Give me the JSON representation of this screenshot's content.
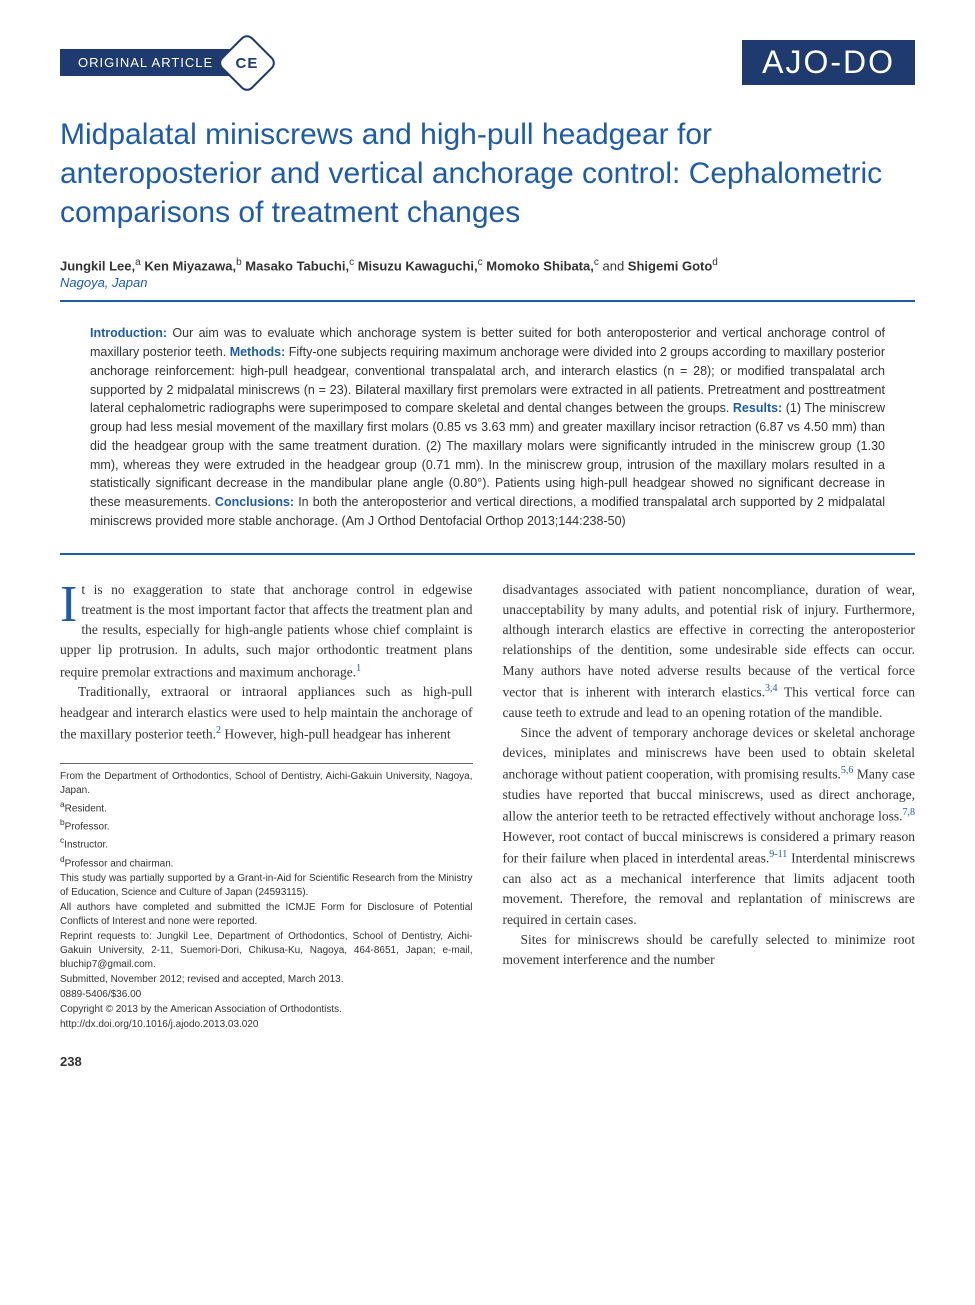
{
  "header": {
    "section_label": "ORIGINAL ARTICLE",
    "ce_badge": "CE",
    "journal_logo": "AJO-DO"
  },
  "title": "Midpalatal miniscrews and high-pull headgear for anteroposterior and vertical anchorage control: Cephalometric comparisons of treatment changes",
  "authors": [
    {
      "name": "Jungkil Lee,",
      "sup": "a"
    },
    {
      "name": "Ken Miyazawa,",
      "sup": "b"
    },
    {
      "name": "Masako Tabuchi,",
      "sup": "c"
    },
    {
      "name": "Misuzu Kawaguchi,",
      "sup": "c"
    },
    {
      "name": "Momoko Shibata,",
      "sup": "c"
    },
    {
      "name": "Shigemi Goto",
      "sup": "d"
    }
  ],
  "authors_joiner": " and ",
  "location": "Nagoya, Japan",
  "abstract": {
    "intro_label": "Introduction:",
    "intro": " Our aim was to evaluate which anchorage system is better suited for both anteroposterior and vertical anchorage control of maxillary posterior teeth. ",
    "methods_label": "Methods:",
    "methods": " Fifty-one subjects requiring maximum anchorage were divided into 2 groups according to maxillary posterior anchorage reinforcement: high-pull headgear, conventional transpalatal arch, and interarch elastics (n = 28); or modified transpalatal arch supported by 2 midpalatal miniscrews (n = 23). Bilateral maxillary first premolars were extracted in all patients. Pretreatment and posttreatment lateral cephalometric radiographs were superimposed to compare skeletal and dental changes between the groups. ",
    "results_label": "Results:",
    "results": " (1) The miniscrew group had less mesial movement of the maxillary first molars (0.85 vs 3.63 mm) and greater maxillary incisor retraction (6.87 vs 4.50 mm) than did the headgear group with the same treatment duration. (2) The maxillary molars were significantly intruded in the miniscrew group (1.30 mm), whereas they were extruded in the headgear group (0.71 mm). In the miniscrew group, intrusion of the maxillary molars resulted in a statistically significant decrease in the mandibular plane angle (0.80°). Patients using high-pull headgear showed no significant decrease in these measurements. ",
    "conclusions_label": "Conclusions:",
    "conclusions": " In both the anteroposterior and vertical directions, a modified transpalatal arch supported by 2 midpalatal miniscrews provided more stable anchorage. (Am J Orthod Dentofacial Orthop 2013;144:238-50)"
  },
  "body": {
    "col1": {
      "p1_dropcap": "I",
      "p1": "t is no exaggeration to state that anchorage control in edgewise treatment is the most important factor that affects the treatment plan and the results, especially for high-angle patients whose chief complaint is upper lip protrusion. In adults, such major orthodontic treatment plans require premolar extractions and maximum anchorage.",
      "p1_ref": "1",
      "p2": "Traditionally, extraoral or intraoral appliances such as high-pull headgear and interarch elastics were used to help maintain the anchorage of the maxillary posterior teeth.",
      "p2_ref": "2",
      "p2_cont": " However, high-pull headgear has inherent"
    },
    "col2": {
      "p1": "disadvantages associated with patient noncompliance, duration of wear, unacceptability by many adults, and potential risk of injury. Furthermore, although interarch elastics are effective in correcting the anteroposterior relationships of the dentition, some undesirable side effects can occur. Many authors have noted adverse results because of the vertical force vector that is inherent with interarch elastics.",
      "p1_ref": "3,4",
      "p1_cont": " This vertical force can cause teeth to extrude and lead to an opening rotation of the mandible.",
      "p2": "Since the advent of temporary anchorage devices or skeletal anchorage devices, miniplates and miniscrews have been used to obtain skeletal anchorage without patient cooperation, with promising results.",
      "p2_ref": "5,6",
      "p2_cont": " Many case studies have reported that buccal miniscrews, used as direct anchorage, allow the anterior teeth to be retracted effectively without anchorage loss.",
      "p2_ref2": "7,8",
      "p2_cont2": " However, root contact of buccal miniscrews is considered a primary reason for their failure when placed in interdental areas.",
      "p2_ref3": "9-11",
      "p2_cont3": " Interdental miniscrews can also act as a mechanical interference that limits adjacent tooth movement. Therefore, the removal and replantation of miniscrews are required in certain cases.",
      "p3": "Sites for miniscrews should be carefully selected to minimize root movement interference and the number"
    }
  },
  "footnotes": {
    "from": "From the Department of Orthodontics, School of Dentistry, Aichi-Gakuin University, Nagoya, Japan.",
    "a": "Resident.",
    "b": "Professor.",
    "c": "Instructor.",
    "d": "Professor and chairman.",
    "funding": "This study was partially supported by a Grant-in-Aid for Scientific Research from the Ministry of Education, Science and Culture of Japan (24593115).",
    "coi": "All authors have completed and submitted the ICMJE Form for Disclosure of Potential Conflicts of Interest and none were reported.",
    "reprint": "Reprint requests to: Jungkil Lee, Department of Orthodontics, School of Dentistry, Aichi-Gakuin University, 2-11, Suemori-Dori, Chikusa-Ku, Nagoya, 464-8651, Japan; e-mail, bluchip7@gmail.com.",
    "submitted": "Submitted, November 2012; revised and accepted, March 2013.",
    "issn": "0889-5406/$36.00",
    "copyright": "Copyright © 2013 by the American Association of Orthodontists.",
    "doi": "http://dx.doi.org/10.1016/j.ajodo.2013.03.020"
  },
  "page_number": "238",
  "colors": {
    "brand_blue": "#1e5ba8",
    "dark_blue": "#1e3a6f",
    "text": "#333333",
    "background": "#ffffff"
  },
  "typography": {
    "title_fontsize": 30,
    "body_fontsize": 13.5,
    "abstract_fontsize": 12.5,
    "footnote_fontsize": 10,
    "dropcap_fontsize": 52
  }
}
